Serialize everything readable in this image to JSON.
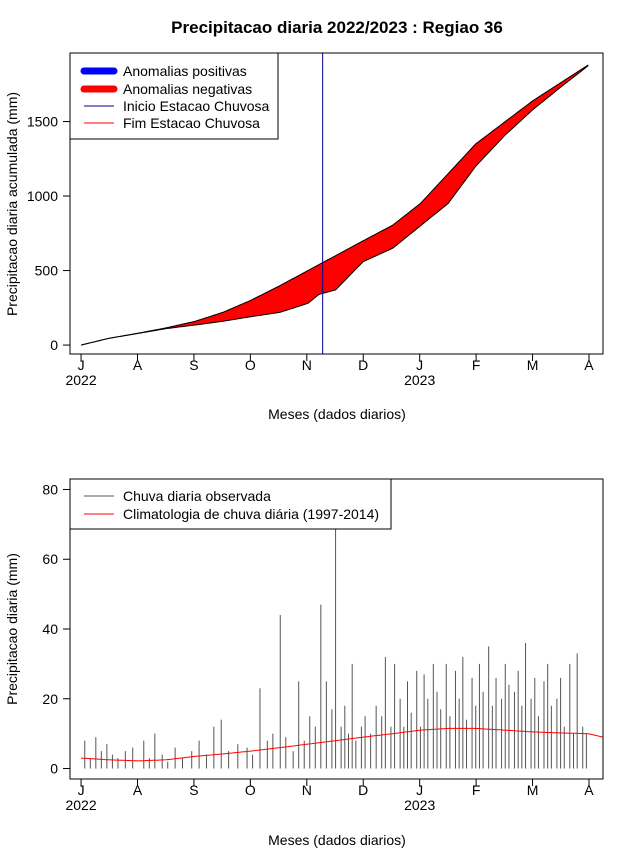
{
  "chart_data": [
    {
      "type": "area",
      "title": "Precipitacao diaria 2022/2023 : Regiao 36",
      "xlabel": "Meses (dados diarios)",
      "ylabel": "Precipitacao diaria acumulada (mm)",
      "month_ticks": [
        "J",
        "A",
        "S",
        "O",
        "N",
        "D",
        "J",
        "F",
        "M",
        "A"
      ],
      "year_labels": [
        "2022",
        "2023"
      ],
      "y_ticks": [
        0,
        500,
        1000,
        1500
      ],
      "ylim": [
        -60,
        1960
      ],
      "xlim_days": [
        -6,
        283
      ],
      "legend": [
        {
          "label": "Anomalias positivas",
          "color": "#0000ff",
          "style": "thick"
        },
        {
          "label": "Anomalias negativas",
          "color": "#ff0000",
          "style": "thick"
        },
        {
          "label": "Inicio Estacao Chuvosa",
          "color": "#00008b",
          "style": "thin"
        },
        {
          "label": "Fim Estacao Chuvosa",
          "color": "#ff0000",
          "style": "thin"
        }
      ],
      "rainy_season_start_day": 131,
      "series": [
        {
          "name": "Climatologia acumulada",
          "x_days": [
            0,
            15,
            31,
            46,
            62,
            77,
            92,
            108,
            123,
            138,
            153,
            169,
            184,
            199,
            214,
            230,
            245,
            260,
            275
          ],
          "values": [
            0,
            45,
            80,
            115,
            160,
            220,
            300,
            400,
            500,
            600,
            700,
            805,
            950,
            1150,
            1350,
            1500,
            1640,
            1760,
            1880
          ]
        },
        {
          "name": "Observado acumulado",
          "x_days": [
            0,
            15,
            31,
            46,
            62,
            77,
            92,
            108,
            123,
            129,
            135,
            138,
            153,
            169,
            184,
            199,
            214,
            230,
            245,
            260,
            275
          ],
          "values": [
            0,
            45,
            78,
            110,
            135,
            160,
            190,
            220,
            280,
            340,
            360,
            370,
            560,
            650,
            800,
            950,
            1200,
            1410,
            1580,
            1730,
            1875
          ]
        }
      ]
    },
    {
      "type": "bar",
      "xlabel": "Meses (dados diarios)",
      "ylabel": "Precipitacao diaria (mm)",
      "month_ticks": [
        "J",
        "A",
        "S",
        "O",
        "N",
        "D",
        "J",
        "F",
        "M",
        "A"
      ],
      "year_labels": [
        "2022",
        "2023"
      ],
      "y_ticks": [
        0,
        20,
        40,
        60,
        80
      ],
      "ylim": [
        -3,
        83
      ],
      "xlim_days": [
        -6,
        283
      ],
      "legend": [
        {
          "label": "Chuva diaria observada",
          "color": "#555555"
        },
        {
          "label": "Climatologia de chuva diária (1997-2014)",
          "color": "#ff0000"
        }
      ],
      "observed_rain": {
        "days": [
          2,
          5,
          8,
          11,
          14,
          17,
          20,
          24,
          28,
          34,
          37,
          40,
          44,
          47,
          51,
          55,
          60,
          64,
          68,
          72,
          76,
          80,
          85,
          90,
          93,
          97,
          101,
          104,
          108,
          111,
          115,
          118,
          121,
          124,
          127,
          130,
          133,
          136,
          138,
          141,
          143,
          145,
          147,
          149,
          152,
          154,
          157,
          160,
          163,
          165,
          168,
          170,
          173,
          175,
          177,
          179,
          182,
          184,
          186,
          188,
          191,
          193,
          195,
          198,
          200,
          203,
          205,
          207,
          209,
          212,
          214,
          216,
          218,
          221,
          223,
          225,
          228,
          230,
          232,
          235,
          237,
          239,
          241,
          244,
          246,
          248,
          251,
          253,
          255,
          258,
          260,
          262,
          265,
          267,
          269,
          272,
          274
        ],
        "values": [
          8,
          3,
          9,
          5,
          7,
          4,
          3,
          5,
          6,
          8,
          3,
          10,
          4,
          2,
          6,
          3,
          5,
          8,
          4,
          12,
          14,
          5,
          7,
          6,
          4,
          23,
          8,
          10,
          44,
          9,
          5,
          25,
          8,
          15,
          12,
          47,
          25,
          17,
          70,
          12,
          18,
          10,
          30,
          8,
          12,
          15,
          10,
          18,
          15,
          32,
          12,
          30,
          20,
          12,
          25,
          16,
          28,
          12,
          27,
          20,
          30,
          22,
          17,
          30,
          15,
          28,
          20,
          32,
          14,
          26,
          18,
          30,
          22,
          35,
          18,
          26,
          20,
          30,
          24,
          22,
          28,
          18,
          36,
          20,
          26,
          15,
          25,
          30,
          18,
          20,
          26,
          12,
          30,
          10,
          33,
          12,
          10
        ]
      },
      "climatology": {
        "x_days": [
          0,
          15,
          31,
          46,
          62,
          77,
          92,
          108,
          123,
          138,
          153,
          169,
          184,
          199,
          214,
          230,
          245,
          260,
          275,
          283
        ],
        "values": [
          3,
          2.5,
          2.2,
          2.5,
          3.5,
          4.2,
          5,
          6,
          7,
          8,
          9,
          10,
          11,
          11.5,
          11.5,
          11,
          10.5,
          10.2,
          10,
          9
        ]
      }
    }
  ]
}
